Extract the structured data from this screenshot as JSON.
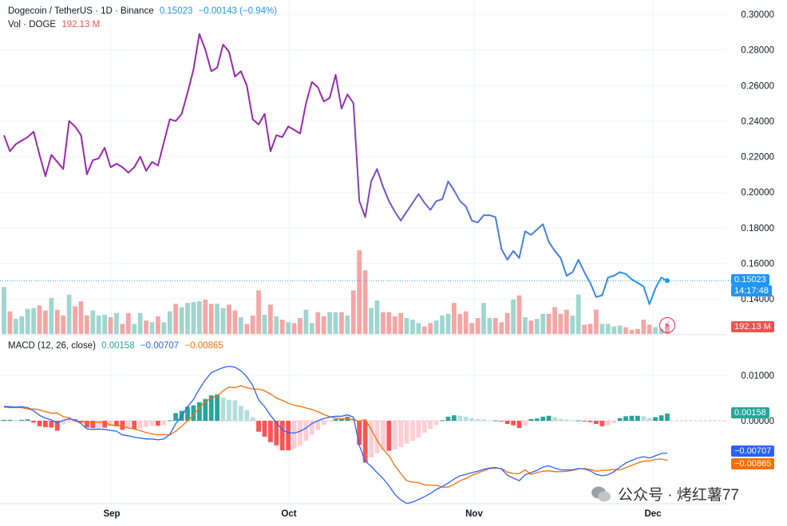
{
  "header": {
    "symbol": "Dogecoin / TetherUS · 1D · Binance",
    "price": "0.15023",
    "change": "−0.00143 (−0.94%)",
    "vol_label": "Vol · DOGE",
    "vol_value": "192.13 M",
    "macd_label": "MACD (12, 26, close)",
    "macd_hist": "0.00158",
    "macd_line": "−0.00707",
    "macd_signal": "−0.00865"
  },
  "tags": {
    "price": "0.15023",
    "countdown": "14:17:48",
    "volume": "192.13 M",
    "hist": "0.00158",
    "macd": "−0.00707",
    "signal": "−0.00865"
  },
  "watermark": "公众号 · 烤红薯77",
  "colors": {
    "up": "#26a69a",
    "down": "#ef5350",
    "macd_line": "#2962ff",
    "signal_line": "#ff6d00",
    "price_line_start": "#9c27b0",
    "price_line_end": "#2196f3"
  },
  "chart_data": {
    "type": "line",
    "title": "Dogecoin / TetherUS · 1D · Binance",
    "x_ticks": [
      "Sep",
      "Oct",
      "Nov",
      "Dec"
    ],
    "price_axis": {
      "ticks": [
        "0.30000",
        "0.28000",
        "0.26000",
        "0.24000",
        "0.22000",
        "0.20000",
        "0.18000",
        "0.16000",
        "0.14000"
      ],
      "ylim": [
        0.126,
        0.305
      ]
    },
    "macd_axis": {
      "ticks": [
        "0.01000",
        "0.00000"
      ],
      "ylim": [
        -0.0195,
        0.0132
      ]
    },
    "last_price": 0.15023,
    "price": [
      0.232,
      0.223,
      0.227,
      0.229,
      0.231,
      0.234,
      0.221,
      0.209,
      0.221,
      0.217,
      0.213,
      0.24,
      0.237,
      0.232,
      0.21,
      0.218,
      0.219,
      0.225,
      0.214,
      0.216,
      0.214,
      0.211,
      0.214,
      0.22,
      0.212,
      0.217,
      0.215,
      0.228,
      0.241,
      0.24,
      0.244,
      0.256,
      0.269,
      0.289,
      0.28,
      0.268,
      0.27,
      0.283,
      0.279,
      0.265,
      0.268,
      0.26,
      0.241,
      0.238,
      0.244,
      0.223,
      0.232,
      0.231,
      0.237,
      0.235,
      0.233,
      0.25,
      0.262,
      0.259,
      0.251,
      0.253,
      0.266,
      0.247,
      0.255,
      0.25,
      0.195,
      0.186,
      0.206,
      0.213,
      0.203,
      0.195,
      0.189,
      0.184,
      0.189,
      0.194,
      0.199,
      0.194,
      0.19,
      0.195,
      0.196,
      0.206,
      0.201,
      0.195,
      0.192,
      0.184,
      0.183,
      0.187,
      0.187,
      0.186,
      0.168,
      0.162,
      0.167,
      0.163,
      0.178,
      0.176,
      0.179,
      0.182,
      0.172,
      0.167,
      0.163,
      0.153,
      0.155,
      0.162,
      0.155,
      0.149,
      0.141,
      0.142,
      0.152,
      0.153,
      0.155,
      0.154,
      0.151,
      0.149,
      0.147,
      0.137,
      0.146,
      0.152,
      0.15
    ],
    "volume": [
      0.56,
      0.27,
      0.18,
      0.21,
      0.3,
      0.31,
      0.34,
      0.28,
      0.43,
      0.29,
      0.22,
      0.47,
      0.33,
      0.39,
      0.22,
      0.28,
      0.22,
      0.23,
      0.2,
      0.25,
      0.12,
      0.25,
      0.12,
      0.25,
      0.16,
      0.14,
      0.21,
      0.14,
      0.27,
      0.36,
      0.32,
      0.37,
      0.38,
      0.39,
      0.41,
      0.36,
      0.36,
      0.31,
      0.35,
      0.28,
      0.2,
      0.12,
      0.22,
      0.52,
      0.23,
      0.35,
      0.21,
      0.17,
      0.14,
      0.13,
      0.19,
      0.29,
      0.13,
      0.26,
      0.21,
      0.26,
      0.26,
      0.26,
      0.22,
      0.52,
      1.0,
      0.76,
      0.31,
      0.4,
      0.26,
      0.26,
      0.21,
      0.25,
      0.19,
      0.17,
      0.13,
      0.09,
      0.13,
      0.16,
      0.22,
      0.24,
      0.37,
      0.24,
      0.27,
      0.13,
      0.19,
      0.37,
      0.19,
      0.19,
      0.14,
      0.25,
      0.41,
      0.46,
      0.2,
      0.16,
      0.18,
      0.24,
      0.24,
      0.32,
      0.24,
      0.29,
      0.22,
      0.47,
      0.11,
      0.12,
      0.29,
      0.12,
      0.12,
      0.09,
      0.1,
      0.08,
      0.05,
      0.06,
      0.17,
      0.11,
      0.08,
      0.06,
      0.11
    ],
    "macd_hist": [
      0.0002,
      0.0002,
      0.0001,
      0.0002,
      0.0003,
      -0.0004,
      -0.0012,
      -0.0014,
      -0.0015,
      -0.0022,
      -0.0008,
      -0.0003,
      0.0003,
      -0.0004,
      -0.0015,
      -0.0016,
      -0.0015,
      -0.0015,
      -0.0012,
      -0.0012,
      -0.002,
      -0.0017,
      -0.0018,
      -0.0016,
      -0.0014,
      -0.0011,
      -0.0011,
      -0.001,
      0.0001,
      0.0017,
      0.0022,
      0.0031,
      0.0034,
      0.0041,
      0.0048,
      0.0056,
      0.0058,
      0.0051,
      0.0046,
      0.0045,
      0.0033,
      0.0024,
      0.0008,
      -0.0024,
      -0.0035,
      -0.0047,
      -0.0054,
      -0.0065,
      -0.0065,
      -0.0061,
      -0.0055,
      -0.0044,
      -0.0031,
      -0.002,
      -0.0009,
      -0.0001,
      0.0004,
      0.0006,
      0.0009,
      0.0005,
      -0.0053,
      -0.0092,
      -0.0081,
      -0.0071,
      -0.0064,
      -0.0066,
      -0.0063,
      -0.0058,
      -0.005,
      -0.0044,
      -0.0037,
      -0.0026,
      -0.0018,
      -0.0009,
      0.0001,
      0.0009,
      0.0012,
      0.0011,
      0.0009,
      0.0006,
      0.0004,
      0.0003,
      0.0001,
      0.0001,
      -0.0001,
      -0.0007,
      -0.001,
      -0.0016,
      -0.0011,
      0.0004,
      0.0005,
      0.0009,
      0.0011,
      0.0008,
      0.0004,
      0.0003,
      0.0001,
      0.0001,
      -0.0001,
      -0.0003,
      -0.0007,
      -0.0012,
      -0.001,
      -0.0005,
      0.0006,
      0.001,
      0.0011,
      0.0011,
      0.001,
      0.0006,
      0.0008,
      0.0012,
      0.0016
    ],
    "macd_line": [
      0.0032,
      0.0031,
      0.003,
      0.0031,
      0.0029,
      0.0022,
      0.0012,
      0.0006,
      0.0002,
      -0.0005,
      0.0001,
      0.0004,
      0.0002,
      -0.0006,
      -0.0018,
      -0.0019,
      -0.0018,
      -0.0019,
      -0.0021,
      -0.0023,
      -0.0031,
      -0.0033,
      -0.0036,
      -0.0038,
      -0.004,
      -0.004,
      -0.0042,
      -0.004,
      -0.003,
      -0.0006,
      0.001,
      0.0031,
      0.0047,
      0.007,
      0.009,
      0.0106,
      0.0112,
      0.0117,
      0.012,
      0.0118,
      0.011,
      0.0097,
      0.0078,
      0.0046,
      0.0031,
      0.0012,
      -0.0004,
      -0.002,
      -0.0026,
      -0.0027,
      -0.0023,
      -0.0016,
      -0.0006,
      0.0,
      0.0005,
      0.0008,
      0.001,
      0.001,
      0.0013,
      0.0008,
      -0.0054,
      -0.0089,
      -0.01,
      -0.0114,
      -0.0127,
      -0.0143,
      -0.0162,
      -0.0174,
      -0.0182,
      -0.0179,
      -0.0173,
      -0.0167,
      -0.016,
      -0.0151,
      -0.0145,
      -0.0137,
      -0.0128,
      -0.0121,
      -0.0118,
      -0.0114,
      -0.0111,
      -0.0107,
      -0.0104,
      -0.0103,
      -0.0106,
      -0.012,
      -0.0126,
      -0.0132,
      -0.0119,
      -0.0114,
      -0.0109,
      -0.0102,
      -0.0099,
      -0.0104,
      -0.0108,
      -0.0108,
      -0.0108,
      -0.0105,
      -0.0106,
      -0.011,
      -0.0118,
      -0.0121,
      -0.0119,
      -0.0112,
      -0.0102,
      -0.0093,
      -0.0087,
      -0.0082,
      -0.0079,
      -0.0082,
      -0.0077,
      -0.0072,
      -0.0071
    ],
    "signal_line": [
      0.003,
      0.0029,
      0.0029,
      0.0029,
      0.0026,
      0.0026,
      0.0024,
      0.002,
      0.0017,
      0.0017,
      0.0009,
      0.0007,
      -0.0001,
      -0.0002,
      -0.0003,
      -0.0003,
      -0.0003,
      -0.0004,
      -0.0009,
      -0.0011,
      -0.0011,
      -0.0016,
      -0.0018,
      -0.0022,
      -0.0026,
      -0.0029,
      -0.0031,
      -0.003,
      -0.0031,
      -0.0023,
      -0.0012,
      0.0,
      0.0013,
      0.0029,
      0.0042,
      0.005,
      0.0054,
      0.0066,
      0.0074,
      0.0073,
      0.0077,
      0.0073,
      0.007,
      0.007,
      0.0066,
      0.0059,
      0.005,
      0.0045,
      0.0039,
      0.0034,
      0.0032,
      0.0028,
      0.0025,
      0.002,
      0.0014,
      0.0009,
      0.0006,
      0.0004,
      0.0004,
      0.0003,
      -0.0001,
      0.0003,
      -0.0019,
      -0.0043,
      -0.0063,
      -0.0077,
      -0.0099,
      -0.0116,
      -0.0132,
      -0.0135,
      -0.0136,
      -0.0141,
      -0.0142,
      -0.0142,
      -0.0146,
      -0.0146,
      -0.014,
      -0.0132,
      -0.0127,
      -0.012,
      -0.0115,
      -0.011,
      -0.0105,
      -0.0104,
      -0.0105,
      -0.0113,
      -0.0116,
      -0.0116,
      -0.0108,
      -0.0118,
      -0.0114,
      -0.0111,
      -0.011,
      -0.0112,
      -0.0112,
      -0.0111,
      -0.0109,
      -0.0106,
      -0.0105,
      -0.0107,
      -0.0111,
      -0.0109,
      -0.0109,
      -0.0107,
      -0.0108,
      -0.0103,
      -0.0098,
      -0.0093,
      -0.0089,
      -0.0088,
      -0.0085,
      -0.0084,
      -0.0087
    ]
  }
}
